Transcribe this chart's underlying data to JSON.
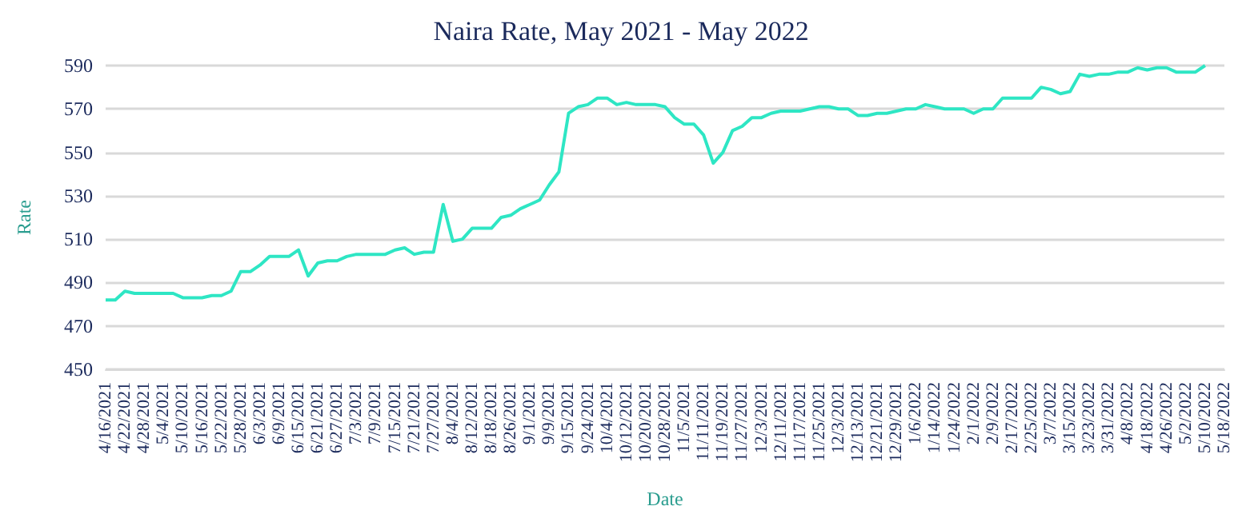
{
  "chart_data": {
    "type": "line",
    "title": "Naira Rate, May 2021 - May 2022",
    "xlabel": "Date",
    "ylabel": "Rate",
    "categories": [
      "4/16/2021",
      null,
      "4/22/2021",
      null,
      "4/28/2021",
      null,
      "5/4/2021",
      null,
      "5/10/2021",
      null,
      "5/16/2021",
      null,
      "5/22/2021",
      null,
      "5/28/2021",
      null,
      "6/3/2021",
      null,
      "6/9/2021",
      null,
      "6/15/2021",
      null,
      "6/21/2021",
      null,
      "6/27/2021",
      null,
      "7/3/2021",
      null,
      "7/9/2021",
      null,
      "7/15/2021",
      null,
      "7/21/2021",
      null,
      "7/27/2021",
      null,
      "8/4/2021",
      null,
      "8/12/2021",
      null,
      "8/18/2021",
      null,
      "8/26/2021",
      null,
      "9/1/2021",
      null,
      "9/9/2021",
      null,
      "9/15/2021",
      null,
      "9/24/2021",
      null,
      "10/4/2021",
      null,
      "10/12/2021",
      null,
      "10/20/2021",
      null,
      "10/28/2021",
      null,
      "11/5/2021",
      null,
      "11/11/2021",
      null,
      "11/19/2021",
      null,
      "11/27/2021",
      null,
      "12/3/2021",
      null,
      "12/11/2021",
      null,
      "11/17/2021",
      null,
      "11/25/2021",
      null,
      "12/3/2021",
      null,
      "12/13/2021",
      null,
      "12/21/2021",
      null,
      "12/29/2021",
      null,
      "1/6/2022",
      null,
      "1/14/2022",
      null,
      "1/24/2022",
      null,
      "2/1/2022",
      null,
      "2/9/2022",
      null,
      "2/17/2022",
      null,
      "2/25/2022",
      null,
      "3/7/2022",
      null,
      "3/15/2022",
      null,
      "3/23/2022",
      null,
      "3/31/2022",
      null,
      "4/8/2022",
      null,
      "4/18/2022",
      null,
      "4/26/2022",
      null,
      "5/2/2022",
      null,
      "5/10/2022",
      null,
      "5/18/2022"
    ],
    "series": [
      {
        "color": "#2ee6c4",
        "values": [
          482,
          482,
          486,
          485,
          485,
          485,
          485,
          485,
          483,
          483,
          483,
          484,
          484,
          486,
          495,
          495,
          498,
          502,
          502,
          502,
          505,
          493,
          499,
          500,
          500,
          502,
          503,
          503,
          503,
          503,
          505,
          506,
          503,
          504,
          504,
          526,
          509,
          510,
          515,
          515,
          515,
          520,
          521,
          524,
          526,
          528,
          535,
          541,
          568,
          571,
          572,
          575,
          575,
          572,
          573,
          572,
          572,
          572,
          571,
          566,
          563,
          563,
          558,
          545,
          550,
          560,
          562,
          566,
          566,
          568,
          569,
          569,
          569,
          570,
          571,
          571,
          570,
          570,
          567,
          567,
          568,
          568,
          569,
          570,
          570,
          572,
          571,
          570,
          570,
          570,
          568,
          570,
          570,
          575,
          575,
          575,
          575,
          580,
          579,
          577,
          578,
          586,
          585,
          586,
          586,
          587,
          587,
          589,
          588,
          589,
          589,
          587,
          587,
          587,
          590,
          null,
          null
        ]
      }
    ],
    "ylim": [
      450,
      590
    ],
    "yticks": [
      450,
      470,
      490,
      510,
      530,
      550,
      570,
      590
    ],
    "grid": "y",
    "marker": "none",
    "line_style": "solid"
  }
}
